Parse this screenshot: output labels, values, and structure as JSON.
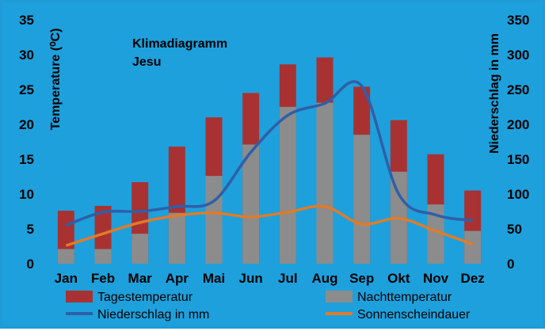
{
  "colors": {
    "background": "#1ea0dc",
    "tages": "#a83232",
    "nacht": "#8c8c8c",
    "niederschlag": "#2f5fa8",
    "sonne": "#e07b2a"
  },
  "chart_data": {
    "type": "bar",
    "title": "Klimadiagramm",
    "subtitle": "Jesu",
    "categories": [
      "Jan",
      "Feb",
      "Mar",
      "Apr",
      "Mai",
      "Jun",
      "Jul",
      "Aug",
      "Sep",
      "Okt",
      "Nov",
      "Dez"
    ],
    "ylabel": "Temperature (⁰C)",
    "y2label": "Niederschlag in mm",
    "ylim": [
      0,
      35
    ],
    "y2lim": [
      0,
      350
    ],
    "yticks": [
      "0",
      "5",
      "10",
      "15",
      "20",
      "25",
      "30",
      "35"
    ],
    "y2ticks": [
      "0",
      "50",
      "100",
      "150",
      "200",
      "250",
      "300",
      "350"
    ],
    "grid": false,
    "legend_position": "bottom",
    "series": [
      {
        "name": "Tagestemperatur",
        "type": "bar",
        "axis": "left",
        "values": [
          7.6,
          8.3,
          11.7,
          16.8,
          21.0,
          24.5,
          28.6,
          29.6,
          25.4,
          20.6,
          15.7,
          10.5
        ]
      },
      {
        "name": "Nachttemperatur",
        "type": "bar",
        "axis": "left",
        "values": [
          2.1,
          2.1,
          4.3,
          7.3,
          12.6,
          17.1,
          22.5,
          23.1,
          18.5,
          13.2,
          8.5,
          4.7
        ]
      },
      {
        "name": "Niederschlag in mm",
        "type": "line",
        "axis": "right",
        "values": [
          55,
          74,
          75,
          82,
          90,
          160,
          213,
          230,
          255,
          100,
          70,
          62
        ]
      },
      {
        "name": "Sonnenscheindauer",
        "type": "line",
        "axis": "left",
        "values": [
          2.6,
          4.3,
          5.9,
          6.9,
          7.3,
          6.7,
          7.4,
          8.2,
          5.7,
          6.5,
          4.7,
          2.8
        ]
      }
    ]
  }
}
